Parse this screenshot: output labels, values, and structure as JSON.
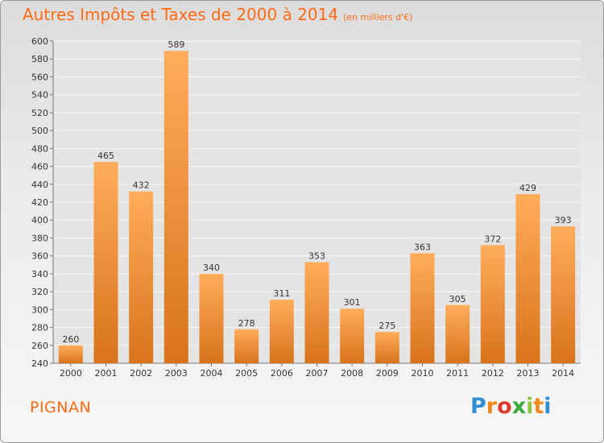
{
  "title": "Autres Impôts et Taxes de 2000 à 2014",
  "subtitle": "(en milliers d'€)",
  "place": "PIGNAN",
  "logo": {
    "text": "Proxiti",
    "colors": [
      "#2f8fd3",
      "#f08a1a",
      "#e03c2d",
      "#3aaa3a",
      "#8cc63e",
      "#f08a1a",
      "#2f8fd3"
    ]
  },
  "colors": {
    "bar_light": "#ffad5a",
    "bar_dark": "#d8731c",
    "accent": "#ff6a13"
  },
  "chart_data": {
    "type": "bar",
    "categories": [
      "2000",
      "2001",
      "2002",
      "2003",
      "2004",
      "2005",
      "2006",
      "2007",
      "2008",
      "2009",
      "2010",
      "2011",
      "2012",
      "2013",
      "2014"
    ],
    "values": [
      260,
      465,
      432,
      589,
      340,
      278,
      311,
      353,
      301,
      275,
      363,
      305,
      372,
      429,
      393
    ],
    "ylim": [
      240,
      600
    ],
    "ytick_step": 20,
    "grid": true
  }
}
